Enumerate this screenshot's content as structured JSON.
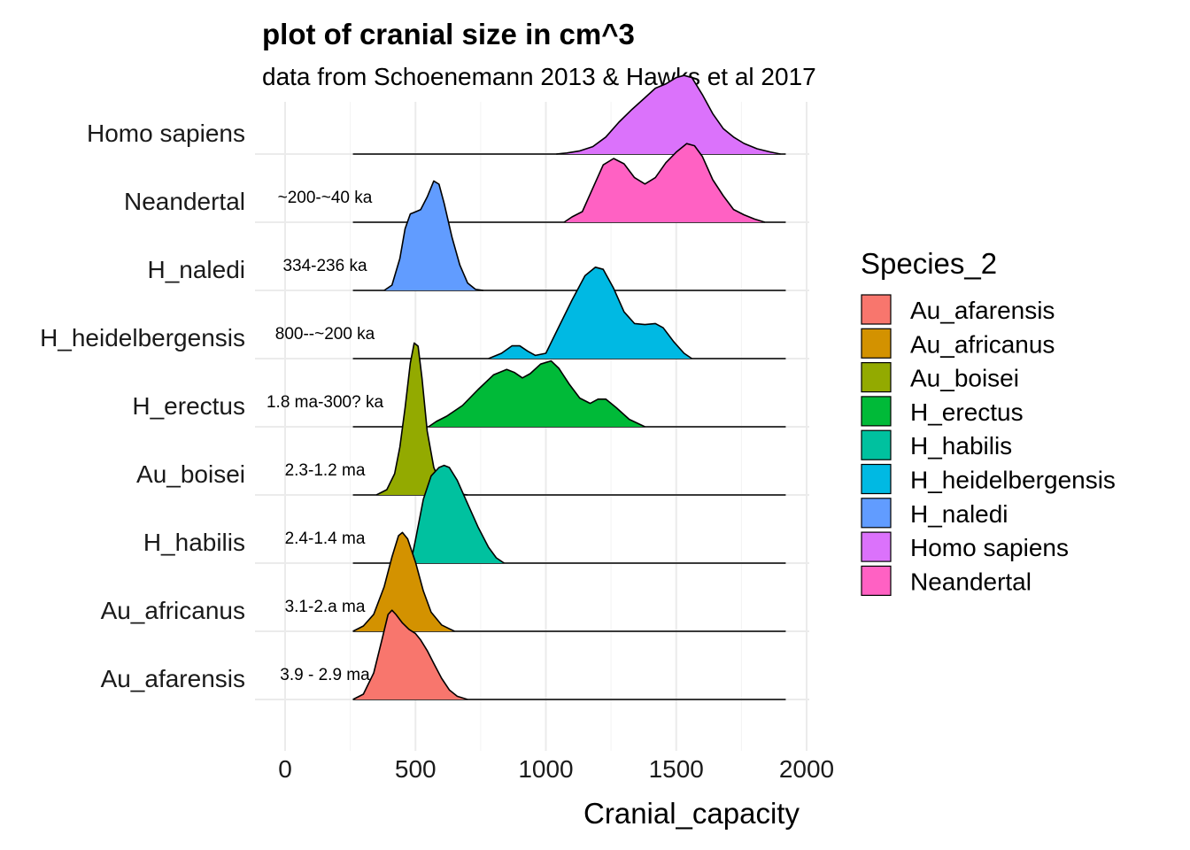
{
  "chart_data": {
    "type": "ridgeline",
    "title": "plot of cranial size in cm^3",
    "subtitle": "data from Schoenemann 2013 & Hawks et al 2017",
    "xlabel": "Cranial_capacity",
    "ylabel": "",
    "xlim": [
      -120,
      2020
    ],
    "x_ticks": [
      0,
      500,
      1000,
      1500,
      2000
    ],
    "x_tick_labels": [
      "0",
      "500",
      "1000",
      "1500",
      "2000"
    ],
    "grid": true,
    "legend": {
      "title": "Species_2",
      "position": "right",
      "entries": [
        {
          "label": "Au_afarensis",
          "color": "#F8766D"
        },
        {
          "label": "Au_africanus",
          "color": "#D39200"
        },
        {
          "label": "Au_boisei",
          "color": "#93AA00"
        },
        {
          "label": "H_erectus",
          "color": "#00BA38"
        },
        {
          "label": "H_habilis",
          "color": "#00C19F"
        },
        {
          "label": "H_heidelbergensis",
          "color": "#00B9E3"
        },
        {
          "label": "H_naledi",
          "color": "#619CFF"
        },
        {
          "label": "Homo sapiens",
          "color": "#DB72FB"
        },
        {
          "label": "Neandertal",
          "color": "#FF61C3"
        }
      ]
    },
    "series": [
      {
        "name": "Au_afarensis",
        "color": "#F8766D",
        "annotation": "3.9 - 2.9 ma",
        "fill_range": [
          260,
          700
        ],
        "density": [
          [
            260,
            0
          ],
          [
            300,
            0.05
          ],
          [
            340,
            0.25
          ],
          [
            370,
            0.55
          ],
          [
            395,
            0.8
          ],
          [
            410,
            0.84
          ],
          [
            425,
            0.8
          ],
          [
            450,
            0.72
          ],
          [
            475,
            0.66
          ],
          [
            500,
            0.62
          ],
          [
            520,
            0.56
          ],
          [
            545,
            0.46
          ],
          [
            570,
            0.34
          ],
          [
            600,
            0.2
          ],
          [
            630,
            0.09
          ],
          [
            660,
            0.03
          ],
          [
            700,
            0
          ]
        ]
      },
      {
        "name": "Au_africanus",
        "color": "#D39200",
        "annotation": "3.1-2.a ma",
        "fill_range": [
          260,
          650
        ],
        "density": [
          [
            260,
            0
          ],
          [
            300,
            0.05
          ],
          [
            340,
            0.16
          ],
          [
            380,
            0.42
          ],
          [
            410,
            0.7
          ],
          [
            435,
            0.9
          ],
          [
            450,
            0.93
          ],
          [
            470,
            0.87
          ],
          [
            500,
            0.65
          ],
          [
            530,
            0.38
          ],
          [
            560,
            0.18
          ],
          [
            600,
            0.06
          ],
          [
            650,
            0
          ]
        ]
      },
      {
        "name": "H_habilis",
        "color": "#00C19F",
        "annotation": "2.4-1.4 ma",
        "fill_range": [
          480,
          840
        ],
        "density": [
          [
            480,
            0
          ],
          [
            490,
            0.1
          ],
          [
            500,
            0.22
          ],
          [
            530,
            0.6
          ],
          [
            560,
            0.82
          ],
          [
            590,
            0.9
          ],
          [
            610,
            0.92
          ],
          [
            630,
            0.9
          ],
          [
            660,
            0.78
          ],
          [
            700,
            0.56
          ],
          [
            740,
            0.34
          ],
          [
            780,
            0.15
          ],
          [
            810,
            0.05
          ],
          [
            840,
            0
          ]
        ]
      },
      {
        "name": "Au_boisei",
        "color": "#93AA00",
        "annotation": "2.3-1.2 ma",
        "fill_range": [
          350,
          700
        ],
        "density": [
          [
            350,
            0
          ],
          [
            390,
            0.05
          ],
          [
            420,
            0.2
          ],
          [
            440,
            0.45
          ],
          [
            460,
            0.82
          ],
          [
            480,
            1.24
          ],
          [
            495,
            1.43
          ],
          [
            510,
            1.4
          ],
          [
            525,
            1.1
          ],
          [
            545,
            0.6
          ],
          [
            570,
            0.26
          ],
          [
            600,
            0.08
          ],
          [
            640,
            0.02
          ],
          [
            700,
            0
          ]
        ]
      },
      {
        "name": "H_erectus",
        "color": "#00BA38",
        "annotation": "1.8 ma-300? ka",
        "fill_range": [
          550,
          1380
        ],
        "density": [
          [
            550,
            0
          ],
          [
            580,
            0.05
          ],
          [
            620,
            0.1
          ],
          [
            680,
            0.2
          ],
          [
            740,
            0.35
          ],
          [
            800,
            0.49
          ],
          [
            850,
            0.54
          ],
          [
            880,
            0.51
          ],
          [
            910,
            0.46
          ],
          [
            940,
            0.5
          ],
          [
            980,
            0.59
          ],
          [
            1020,
            0.62
          ],
          [
            1050,
            0.55
          ],
          [
            1090,
            0.4
          ],
          [
            1130,
            0.27
          ],
          [
            1170,
            0.22
          ],
          [
            1200,
            0.26
          ],
          [
            1230,
            0.26
          ],
          [
            1270,
            0.18
          ],
          [
            1320,
            0.07
          ],
          [
            1380,
            0
          ]
        ]
      },
      {
        "name": "H_heidelbergensis",
        "color": "#00B9E3",
        "annotation": "800--~200 ka",
        "fill_range": [
          780,
          1560
        ],
        "density": [
          [
            780,
            0
          ],
          [
            830,
            0.05
          ],
          [
            870,
            0.12
          ],
          [
            900,
            0.12
          ],
          [
            930,
            0.07
          ],
          [
            960,
            0.03
          ],
          [
            1000,
            0.05
          ],
          [
            1050,
            0.3
          ],
          [
            1100,
            0.55
          ],
          [
            1150,
            0.78
          ],
          [
            1190,
            0.86
          ],
          [
            1220,
            0.84
          ],
          [
            1260,
            0.66
          ],
          [
            1300,
            0.44
          ],
          [
            1340,
            0.33
          ],
          [
            1380,
            0.32
          ],
          [
            1420,
            0.33
          ],
          [
            1450,
            0.29
          ],
          [
            1490,
            0.16
          ],
          [
            1530,
            0.05
          ],
          [
            1560,
            0
          ]
        ]
      },
      {
        "name": "H_naledi",
        "color": "#619CFF",
        "annotation": "334-236 ka",
        "fill_range": [
          380,
          760
        ],
        "density": [
          [
            380,
            0
          ],
          [
            410,
            0.05
          ],
          [
            440,
            0.3
          ],
          [
            460,
            0.58
          ],
          [
            480,
            0.72
          ],
          [
            500,
            0.74
          ],
          [
            520,
            0.76
          ],
          [
            545,
            0.88
          ],
          [
            570,
            1.03
          ],
          [
            590,
            1.0
          ],
          [
            610,
            0.82
          ],
          [
            640,
            0.5
          ],
          [
            670,
            0.24
          ],
          [
            700,
            0.07
          ],
          [
            730,
            0.01
          ],
          [
            760,
            0
          ]
        ]
      },
      {
        "name": "Neandertal",
        "color": "#FF61C3",
        "annotation": "~200-~40 ka",
        "fill_range": [
          1070,
          1840
        ],
        "density": [
          [
            1070,
            0
          ],
          [
            1100,
            0.05
          ],
          [
            1140,
            0.1
          ],
          [
            1180,
            0.32
          ],
          [
            1220,
            0.54
          ],
          [
            1260,
            0.6
          ],
          [
            1300,
            0.55
          ],
          [
            1340,
            0.42
          ],
          [
            1380,
            0.36
          ],
          [
            1420,
            0.42
          ],
          [
            1460,
            0.56
          ],
          [
            1500,
            0.66
          ],
          [
            1540,
            0.74
          ],
          [
            1570,
            0.72
          ],
          [
            1600,
            0.62
          ],
          [
            1640,
            0.4
          ],
          [
            1680,
            0.25
          ],
          [
            1720,
            0.12
          ],
          [
            1760,
            0.07
          ],
          [
            1800,
            0.03
          ],
          [
            1840,
            0
          ]
        ]
      },
      {
        "name": "Homo sapiens",
        "color": "#DB72FB",
        "annotation": "",
        "fill_range": [
          1040,
          1900
        ],
        "density": [
          [
            1040,
            0
          ],
          [
            1080,
            0.01
          ],
          [
            1130,
            0.03
          ],
          [
            1180,
            0.07
          ],
          [
            1230,
            0.16
          ],
          [
            1280,
            0.3
          ],
          [
            1330,
            0.42
          ],
          [
            1380,
            0.53
          ],
          [
            1420,
            0.62
          ],
          [
            1460,
            0.66
          ],
          [
            1500,
            0.72
          ],
          [
            1530,
            0.74
          ],
          [
            1560,
            0.72
          ],
          [
            1600,
            0.56
          ],
          [
            1640,
            0.38
          ],
          [
            1680,
            0.24
          ],
          [
            1720,
            0.16
          ],
          [
            1760,
            0.1
          ],
          [
            1810,
            0.05
          ],
          [
            1860,
            0.02
          ],
          [
            1900,
            0
          ]
        ]
      }
    ]
  }
}
